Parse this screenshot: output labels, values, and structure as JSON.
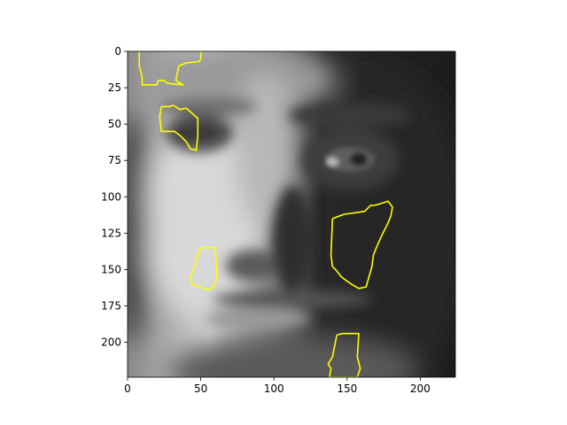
{
  "image": {
    "description_role": "grayscale face photograph",
    "extent_x": [
      0,
      224
    ],
    "extent_y": [
      0,
      224
    ],
    "y_axis_inverted": true
  },
  "axes": {
    "x_ticks": [
      0,
      50,
      100,
      150,
      200
    ],
    "y_ticks": [
      0,
      25,
      50,
      75,
      100,
      125,
      150,
      175,
      200
    ],
    "x_tick_labels": [
      "0",
      "50",
      "100",
      "150",
      "200"
    ],
    "y_tick_labels": [
      "0",
      "25",
      "50",
      "75",
      "100",
      "125",
      "150",
      "175",
      "200"
    ]
  },
  "overlay": {
    "contour_color": "#ffff00",
    "contours": [
      {
        "name": "contour-top-left",
        "points": [
          [
            8,
            0
          ],
          [
            8,
            10
          ],
          [
            10,
            18
          ],
          [
            10,
            23
          ],
          [
            20,
            23
          ],
          [
            21,
            20
          ],
          [
            25,
            20
          ],
          [
            27,
            22
          ],
          [
            38,
            23
          ],
          [
            33,
            20
          ],
          [
            35,
            10
          ],
          [
            40,
            8
          ],
          [
            49,
            7
          ],
          [
            50,
            5
          ],
          [
            50,
            0
          ]
        ]
      },
      {
        "name": "contour-left-eye",
        "points": [
          [
            23,
            38
          ],
          [
            29,
            38
          ],
          [
            31,
            37
          ],
          [
            36,
            40
          ],
          [
            40,
            39
          ],
          [
            48,
            46
          ],
          [
            48,
            58
          ],
          [
            47,
            68
          ],
          [
            43,
            67
          ],
          [
            40,
            62
          ],
          [
            36,
            58
          ],
          [
            32,
            55
          ],
          [
            23,
            55
          ],
          [
            22,
            45
          ],
          [
            23,
            38
          ]
        ]
      },
      {
        "name": "contour-nose",
        "points": [
          [
            50,
            135
          ],
          [
            60,
            135
          ],
          [
            61,
            155
          ],
          [
            59,
            162
          ],
          [
            55,
            164
          ],
          [
            50,
            162
          ],
          [
            44,
            160
          ],
          [
            43,
            155
          ],
          [
            46,
            148
          ],
          [
            47,
            142
          ],
          [
            50,
            135
          ]
        ]
      },
      {
        "name": "contour-right-cheek",
        "points": [
          [
            140,
            115
          ],
          [
            148,
            112
          ],
          [
            155,
            111
          ],
          [
            162,
            110
          ],
          [
            166,
            106
          ],
          [
            168,
            106
          ],
          [
            172,
            105
          ],
          [
            178,
            103
          ],
          [
            181,
            107
          ],
          [
            180,
            113
          ],
          [
            178,
            118
          ],
          [
            176,
            122
          ],
          [
            173,
            128
          ],
          [
            170,
            135
          ],
          [
            168,
            140
          ],
          [
            167,
            148
          ],
          [
            165,
            155
          ],
          [
            163,
            162
          ],
          [
            158,
            163
          ],
          [
            153,
            160
          ],
          [
            150,
            158
          ],
          [
            146,
            155
          ],
          [
            143,
            151
          ],
          [
            140,
            148
          ],
          [
            139,
            140
          ],
          [
            140,
            115
          ]
        ]
      },
      {
        "name": "contour-bottom",
        "points": [
          [
            143,
            195
          ],
          [
            147,
            194
          ],
          [
            158,
            194
          ],
          [
            157,
            210
          ],
          [
            159,
            218
          ],
          [
            157,
            224
          ],
          [
            138,
            224
          ],
          [
            139,
            218
          ],
          [
            137,
            215
          ],
          [
            140,
            210
          ],
          [
            141,
            205
          ],
          [
            143,
            195
          ]
        ]
      }
    ]
  }
}
